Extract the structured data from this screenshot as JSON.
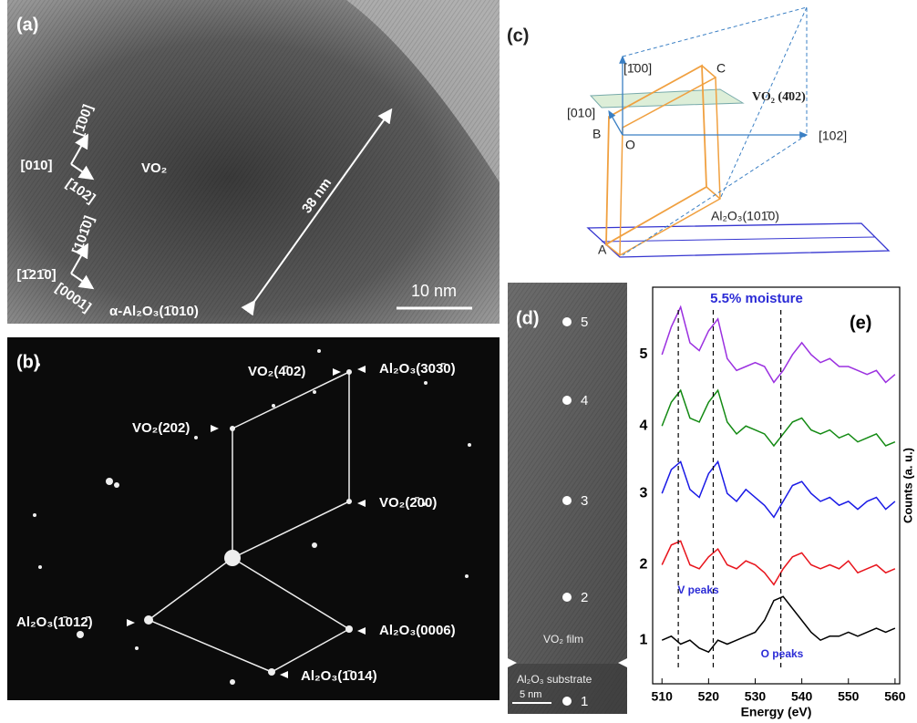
{
  "panel_a": {
    "label": "(a)",
    "axes_vo2": [
      "[1̄00]",
      "[010]",
      "[102]"
    ],
    "phase_vo2": "VO₂",
    "axes_al2o3": [
      "[101̄0]",
      "[1̄21̄0]",
      "[0001]"
    ],
    "substrate": "α-Al₂O₃(1̄010)",
    "thickness": "38 nm",
    "scale_bar": "10 nm"
  },
  "panel_b": {
    "label": "(b)",
    "spots": [
      "VO₂(4̄02)",
      "Al₂O₃(303̄0)",
      "VO₂(202)",
      "VO₂(2̄00)",
      "Al₂O₃(1̄012̄)",
      "Al₂O₃(0006)",
      "Al₂O₃(1̄014)"
    ]
  },
  "panel_c": {
    "label": "(c)",
    "directions": [
      "[1̄00]",
      "[010]",
      "[102]"
    ],
    "points": [
      "A",
      "B",
      "C",
      "O"
    ],
    "plane_vo2": "VO₂  (4̄02)",
    "plane_al2o3": "Al₂O₃(101̄0)"
  },
  "panel_d": {
    "label": "(d)",
    "points": [
      "5",
      "4",
      "3",
      "2",
      "1"
    ],
    "film": "VO₂ film",
    "substrate": "Al₂O₃ substrate",
    "scale_bar": "5 nm"
  },
  "chart_data": {
    "type": "line",
    "title": "5.5% moisture",
    "panel_label": "(e)",
    "xlabel": "Energy (eV)",
    "ylabel": "Counts (a. u.)",
    "annotations": [
      "V peaks",
      "O peaks"
    ],
    "peak_lines": [
      513.5,
      521,
      535.5
    ],
    "x": [
      510,
      512,
      514,
      516,
      518,
      520,
      522,
      524,
      526,
      528,
      530,
      532,
      534,
      536,
      538,
      540,
      542,
      544,
      546,
      548,
      550,
      552,
      554,
      556,
      558,
      560
    ],
    "series": [
      {
        "name": "1",
        "color": "#000000",
        "values": [
          1.1,
          1.2,
          1.0,
          1.1,
          0.9,
          0.8,
          1.1,
          1.0,
          1.1,
          1.2,
          1.3,
          1.6,
          2.1,
          2.2,
          1.9,
          1.6,
          1.3,
          1.1,
          1.2,
          1.2,
          1.3,
          1.2,
          1.3,
          1.4,
          1.3,
          1.4
        ]
      },
      {
        "name": "2",
        "color": "#e8141c",
        "values": [
          3.0,
          3.5,
          3.6,
          3.0,
          2.9,
          3.2,
          3.4,
          3.0,
          2.9,
          3.1,
          3.0,
          2.8,
          2.5,
          2.9,
          3.2,
          3.3,
          3.0,
          2.9,
          3.0,
          2.9,
          3.1,
          2.8,
          2.9,
          3.0,
          2.8,
          2.9
        ]
      },
      {
        "name": "3",
        "color": "#1a1ae6",
        "values": [
          4.8,
          5.4,
          5.6,
          4.9,
          4.7,
          5.3,
          5.6,
          4.8,
          4.6,
          4.9,
          4.7,
          4.5,
          4.2,
          4.6,
          5.0,
          5.1,
          4.8,
          4.6,
          4.7,
          4.5,
          4.6,
          4.4,
          4.6,
          4.7,
          4.4,
          4.6
        ]
      },
      {
        "name": "4",
        "color": "#138a13",
        "values": [
          6.5,
          7.1,
          7.4,
          6.7,
          6.6,
          7.1,
          7.4,
          6.6,
          6.3,
          6.5,
          6.4,
          6.3,
          6.0,
          6.3,
          6.6,
          6.7,
          6.4,
          6.3,
          6.4,
          6.2,
          6.3,
          6.1,
          6.2,
          6.3,
          6.0,
          6.1
        ]
      },
      {
        "name": "5",
        "color": "#9b30e0",
        "values": [
          8.3,
          9.0,
          9.5,
          8.6,
          8.4,
          8.9,
          9.2,
          8.2,
          7.9,
          8.0,
          8.1,
          8.0,
          7.6,
          7.9,
          8.3,
          8.6,
          8.3,
          8.1,
          8.2,
          8.0,
          8.0,
          7.9,
          7.8,
          7.9,
          7.6,
          7.8
        ]
      }
    ],
    "xlim": [
      508,
      561
    ],
    "xticks": [
      510,
      520,
      530,
      540,
      550,
      560
    ],
    "ylim": [
      0,
      10
    ]
  }
}
